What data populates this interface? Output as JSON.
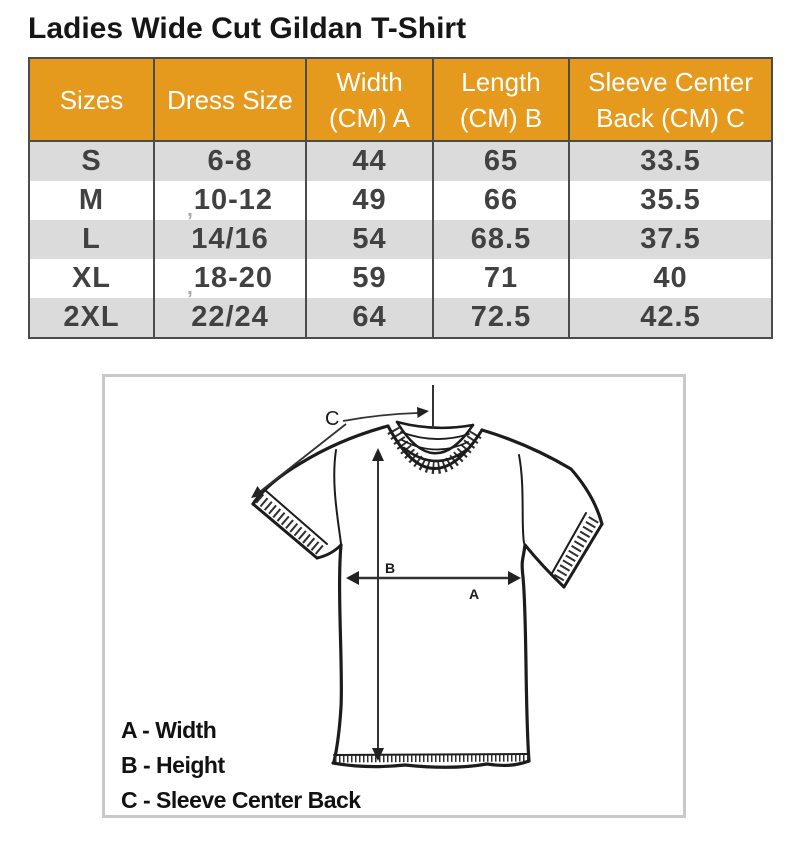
{
  "title": "Ladies Wide Cut Gildan T-Shirt",
  "table": {
    "columns": [
      "Sizes",
      "Dress Size",
      "Width (CM) A",
      "Length (CM) B",
      "Sleeve Center Back (CM) C"
    ],
    "rows": [
      {
        "size": "S",
        "dress_size": "6-8",
        "width_cm": "44",
        "length_cm": "65",
        "sleeve_center_back_cm": "33.5",
        "artifact": ""
      },
      {
        "size": "M",
        "dress_size": "10-12",
        "width_cm": "49",
        "length_cm": "66",
        "sleeve_center_back_cm": "35.5",
        "artifact": ","
      },
      {
        "size": "L",
        "dress_size": "14/16",
        "width_cm": "54",
        "length_cm": "68.5",
        "sleeve_center_back_cm": "37.5",
        "artifact": ""
      },
      {
        "size": "XL",
        "dress_size": "18-20",
        "width_cm": "59",
        "length_cm": "71",
        "sleeve_center_back_cm": "40",
        "artifact": ","
      },
      {
        "size": "2XL",
        "dress_size": "22/24",
        "width_cm": "64",
        "length_cm": "72.5",
        "sleeve_center_back_cm": "42.5",
        "artifact": ""
      }
    ]
  },
  "chart_data": {
    "type": "table",
    "title": "Ladies Wide Cut Gildan T-Shirt",
    "columns": [
      "Sizes",
      "Dress Size",
      "Width (CM) A",
      "Length (CM) B",
      "Sleeve Center Back (CM) C"
    ],
    "rows": [
      [
        "S",
        "6-8",
        44,
        65,
        33.5
      ],
      [
        "M",
        "10-12",
        49,
        66,
        35.5
      ],
      [
        "L",
        "14/16",
        54,
        68.5,
        37.5
      ],
      [
        "XL",
        "18-20",
        59,
        71,
        40
      ],
      [
        "2XL",
        "22/24",
        64,
        72.5,
        42.5
      ]
    ]
  },
  "diagram": {
    "labels": {
      "a": "A",
      "b": "B",
      "c": "C"
    },
    "legend": [
      "A - Width",
      "B - Height",
      "C - Sleeve Center Back"
    ]
  },
  "colors": {
    "header_bg": "#E5991D",
    "header_text": "#FFFFFF",
    "row_bg": "#FFFFFF",
    "row_alt_bg": "#DBDBDB",
    "cell_text": "#414141",
    "table_border": "#4C4C4C",
    "title_text": "#161616",
    "diagram_border": "#C8C8C8",
    "line": "#1C1C1C"
  }
}
